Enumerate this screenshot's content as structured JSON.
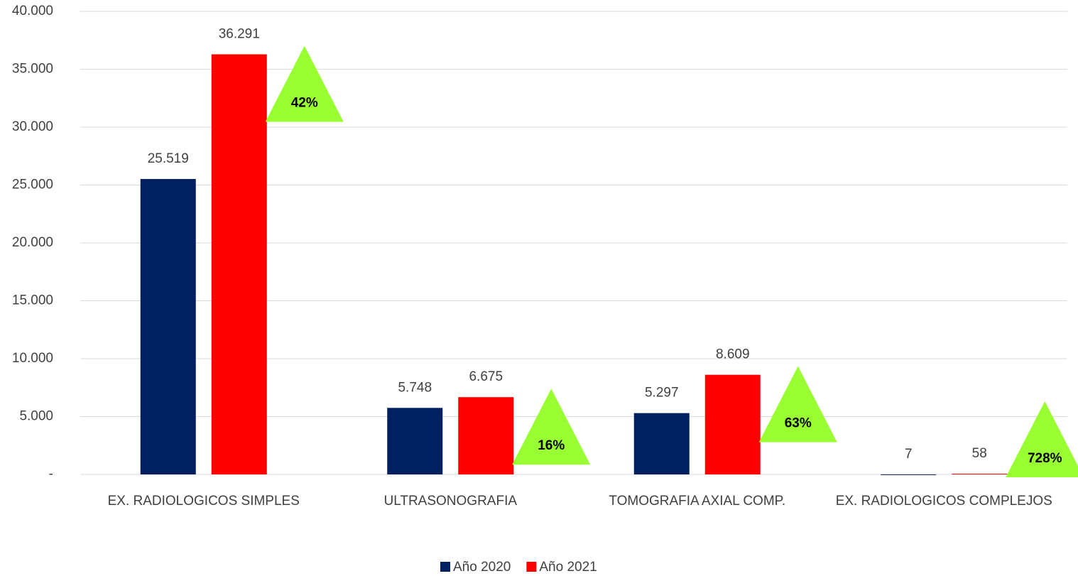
{
  "chart_data": {
    "type": "bar",
    "categories": [
      "EX. RADIOLOGICOS SIMPLES",
      "ULTRASONOGRAFIA",
      "TOMOGRAFIA AXIAL COMP.",
      "EX. RADIOLOGICOS COMPLEJOS"
    ],
    "series": [
      {
        "name": "Año 2020",
        "color": "#002060",
        "values": [
          25519,
          5748,
          5297,
          7
        ],
        "value_labels": [
          "25.519",
          "5.748",
          "5.297",
          "7"
        ]
      },
      {
        "name": "Año 2021",
        "color": "#ff0000",
        "values": [
          36291,
          6675,
          8609,
          58
        ],
        "value_labels": [
          "36.291",
          "6.675",
          "8.609",
          "58"
        ]
      }
    ],
    "annotations": [
      "42%",
      "16%",
      "63%",
      "728%"
    ],
    "annotation_color": "#99ff33",
    "ylim": [
      0,
      40000
    ],
    "yticks": [
      {
        "value": 0,
        "label": "-"
      },
      {
        "value": 5000,
        "label": "5.000"
      },
      {
        "value": 10000,
        "label": "10.000"
      },
      {
        "value": 15000,
        "label": "15.000"
      },
      {
        "value": 20000,
        "label": "20.000"
      },
      {
        "value": 25000,
        "label": "25.000"
      },
      {
        "value": 30000,
        "label": "30.000"
      },
      {
        "value": 35000,
        "label": "35.000"
      },
      {
        "value": 40000,
        "label": "40.000"
      }
    ],
    "grid": true,
    "legend": "bottom"
  }
}
